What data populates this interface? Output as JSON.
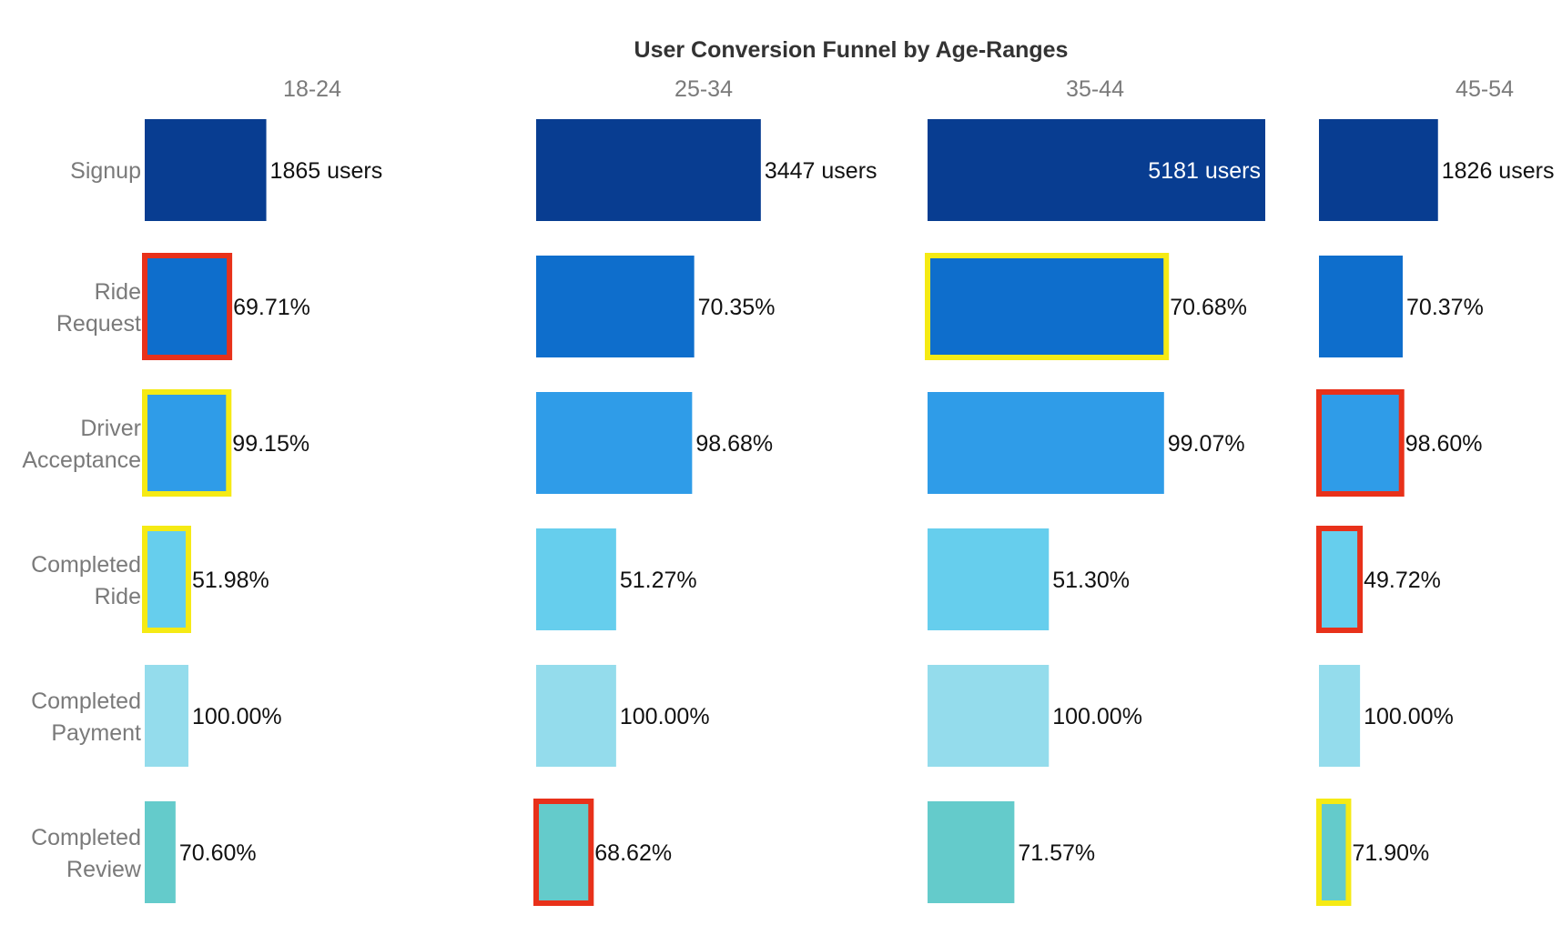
{
  "chart_data": {
    "type": "bar",
    "title": "User Conversion Funnel by Age-Ranges",
    "age_ranges": [
      "18-24",
      "25-34",
      "35-44",
      "45-54"
    ],
    "stages": [
      {
        "label": [
          "Signup"
        ],
        "color": "#083d91"
      },
      {
        "label": [
          "Ride",
          "Request"
        ],
        "color": "#0e6ecc"
      },
      {
        "label": [
          "Driver",
          "Acceptance"
        ],
        "color": "#2f9ce8"
      },
      {
        "label": [
          "Completed",
          "Ride"
        ],
        "color": "#66ceed"
      },
      {
        "label": [
          "Completed",
          "Payment"
        ],
        "color": "#94dcec"
      },
      {
        "label": [
          "Completed",
          "Review"
        ],
        "color": "#64cbcb"
      }
    ],
    "users": [
      {
        "range": "18-24",
        "value": 1865,
        "text": "1865 users",
        "stage_users": [
          1865,
          1300,
          1289,
          670,
          670,
          473
        ]
      },
      {
        "range": "25-34",
        "value": 3447,
        "text": "3447 users",
        "stage_users": [
          3447,
          2425,
          2393,
          1227,
          1227,
          842
        ]
      },
      {
        "range": "35-44",
        "value": 5181,
        "text": "5181 users",
        "stage_users": [
          5181,
          3662,
          3628,
          1861,
          1861,
          1332
        ]
      },
      {
        "range": "45-54",
        "value": 1826,
        "text": "1826 users",
        "stage_users": [
          1826,
          1285,
          1267,
          630,
          630,
          453
        ]
      }
    ],
    "conversion_rates": {
      "18-24": [
        "69.71%",
        "99.15%",
        "51.98%",
        "100.00%",
        "70.60%"
      ],
      "25-34": [
        "70.35%",
        "98.68%",
        "51.27%",
        "100.00%",
        "68.62%"
      ],
      "35-44": [
        "70.68%",
        "99.07%",
        "51.30%",
        "100.00%",
        "71.57%"
      ],
      "45-54": [
        "70.37%",
        "98.60%",
        "49.72%",
        "100.00%",
        "71.90%"
      ]
    },
    "highlights": [
      {
        "range": "18-24",
        "stage": "Ride Request",
        "color": "red"
      },
      {
        "range": "18-24",
        "stage": "Driver Acceptance",
        "color": "yellow"
      },
      {
        "range": "18-24",
        "stage": "Completed Ride",
        "color": "yellow"
      },
      {
        "range": "25-34",
        "stage": "Completed Review",
        "color": "red"
      },
      {
        "range": "35-44",
        "stage": "Ride Request",
        "color": "yellow"
      },
      {
        "range": "45-54",
        "stage": "Driver Acceptance",
        "color": "red"
      },
      {
        "range": "45-54",
        "stage": "Completed Ride",
        "color": "red"
      },
      {
        "range": "45-54",
        "stage": "Completed Review",
        "color": "yellow"
      }
    ],
    "highlight_colors": {
      "red": "#e8311a",
      "yellow": "#f5ea14"
    },
    "text_color": "#111111",
    "header_color": "#7a7a7a",
    "grid": false,
    "legend": "none"
  }
}
